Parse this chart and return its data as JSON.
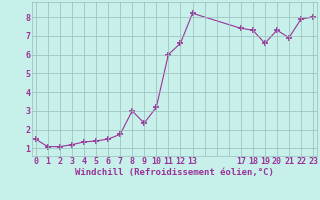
{
  "x": [
    0,
    1,
    2,
    3,
    4,
    5,
    6,
    7,
    8,
    9,
    10,
    11,
    12,
    13,
    17,
    18,
    19,
    20,
    21,
    22,
    23
  ],
  "y": [
    1.5,
    1.1,
    1.1,
    1.2,
    1.35,
    1.4,
    1.5,
    1.75,
    3.0,
    2.35,
    3.2,
    6.0,
    6.6,
    8.2,
    7.4,
    7.3,
    6.6,
    7.3,
    6.9,
    7.9,
    8.0
  ],
  "line_color": "#993399",
  "marker": "+",
  "marker_size": 4,
  "marker_lw": 1.2,
  "background_color": "#c8f0ea",
  "grid_color": "#99bbbb",
  "xlabel": "Windchill (Refroidissement éolien,°C)",
  "xlabel_fontsize": 6.5,
  "ylabel_ticks": [
    1,
    2,
    3,
    4,
    5,
    6,
    7,
    8
  ],
  "xtick_labels": [
    "0",
    "1",
    "2",
    "3",
    "4",
    "5",
    "6",
    "7",
    "8",
    "9",
    "10",
    "11",
    "12",
    "13",
    "",
    "",
    "",
    "17",
    "18",
    "19",
    "20",
    "21",
    "22",
    "23"
  ],
  "xtick_positions": [
    0,
    1,
    2,
    3,
    4,
    5,
    6,
    7,
    8,
    9,
    10,
    11,
    12,
    13,
    14,
    15,
    16,
    17,
    18,
    19,
    20,
    21,
    22,
    23
  ],
  "ylim": [
    0.6,
    8.8
  ],
  "xlim": [
    -0.3,
    23.3
  ],
  "label_color": "#993399",
  "tick_fontsize": 6.0,
  "linewidth": 0.8
}
